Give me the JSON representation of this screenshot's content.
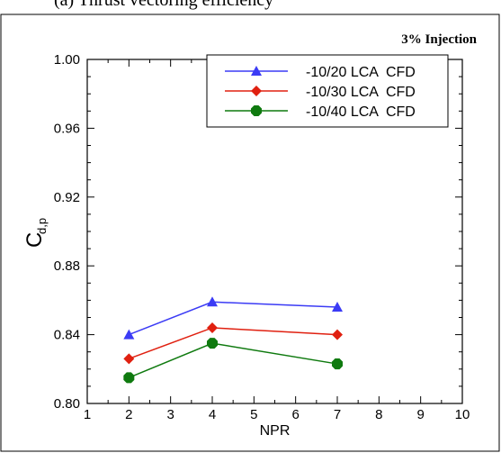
{
  "page": {
    "top_caption": "(a)     Thrust vectoring efficiency"
  },
  "chart_data": {
    "type": "line",
    "annotation": "3% Injection",
    "xlabel": "NPR",
    "ylabel_main": "C",
    "ylabel_sub": "d,p",
    "xlim": [
      1,
      10
    ],
    "ylim": [
      0.8,
      1.0
    ],
    "x_ticks": [
      1,
      2,
      3,
      4,
      5,
      6,
      7,
      8,
      9,
      10
    ],
    "x_tick_labels": [
      "1",
      "2",
      "3",
      "4",
      "5",
      "6",
      "7",
      "8",
      "9",
      "10"
    ],
    "y_ticks": [
      0.8,
      0.84,
      0.88,
      0.92,
      0.96,
      1.0
    ],
    "y_tick_labels": [
      "0.80",
      "0.84",
      "0.88",
      "0.92",
      "0.96",
      "1.00"
    ],
    "legend_position": "top-right",
    "x": [
      2,
      4,
      7
    ],
    "series": [
      {
        "name": "-10/20 LCA  CFD",
        "color": "#3b3bf5",
        "marker": "triangle",
        "values": [
          0.84,
          0.859,
          0.856
        ]
      },
      {
        "name": "-10/30 LCA  CFD",
        "color": "#e02010",
        "marker": "diamond",
        "values": [
          0.826,
          0.844,
          0.84
        ]
      },
      {
        "name": "-10/40 LCA  CFD",
        "color": "#0f7a0f",
        "marker": "octagon",
        "values": [
          0.815,
          0.835,
          0.823
        ]
      }
    ]
  }
}
